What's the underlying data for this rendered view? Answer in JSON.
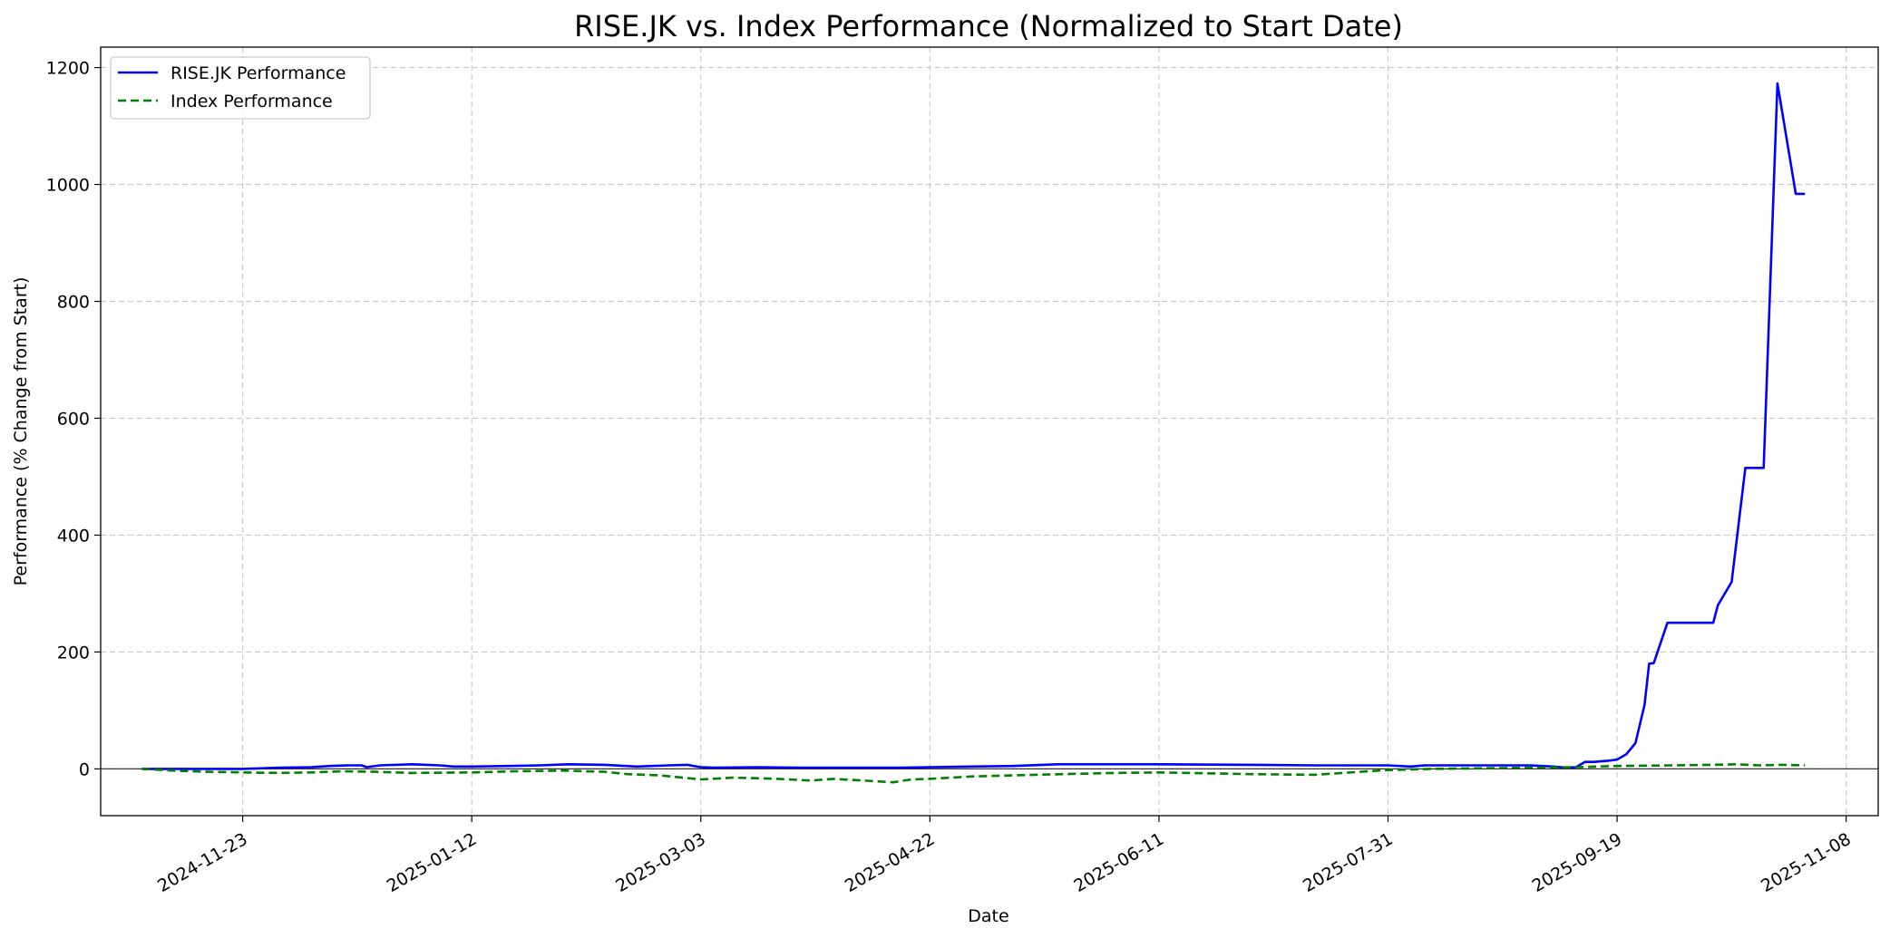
{
  "chart_data": {
    "type": "line",
    "title": "RISE.JK vs. Index Performance (Normalized to Start Date)",
    "xlabel": "Date",
    "ylabel": "Performance (% Change from Start)",
    "x_ticks": [
      "2024-11-23",
      "2025-01-12",
      "2025-03-03",
      "2025-04-22",
      "2025-06-11",
      "2025-07-31",
      "2025-09-19",
      "2025-11-08"
    ],
    "y_ticks": [
      0,
      200,
      400,
      600,
      800,
      1000,
      1200
    ],
    "xlim": [
      "2024-10-23",
      "2025-11-15"
    ],
    "ylim": [
      -80,
      1235
    ],
    "grid": true,
    "grid_style": "dashed",
    "zero_line": true,
    "legend_position": "top-left",
    "series": [
      {
        "name": "RISE.JK Performance",
        "color": "#0000ff",
        "style": "solid",
        "points": [
          [
            "2024-11-01",
            0
          ],
          [
            "2024-11-10",
            0
          ],
          [
            "2024-11-23",
            0
          ],
          [
            "2024-12-01",
            2
          ],
          [
            "2024-12-08",
            3
          ],
          [
            "2024-12-12",
            5
          ],
          [
            "2024-12-16",
            6
          ],
          [
            "2024-12-19",
            6
          ],
          [
            "2024-12-20",
            3
          ],
          [
            "2024-12-23",
            6
          ],
          [
            "2024-12-30",
            8
          ],
          [
            "2025-01-05",
            6
          ],
          [
            "2025-01-08",
            4
          ],
          [
            "2025-01-12",
            4
          ],
          [
            "2025-01-20",
            5
          ],
          [
            "2025-01-27",
            6
          ],
          [
            "2025-02-02",
            8
          ],
          [
            "2025-02-10",
            7
          ],
          [
            "2025-02-17",
            4
          ],
          [
            "2025-02-24",
            6
          ],
          [
            "2025-02-28",
            7
          ],
          [
            "2025-03-03",
            3
          ],
          [
            "2025-03-06",
            2
          ],
          [
            "2025-03-15",
            3
          ],
          [
            "2025-03-25",
            2
          ],
          [
            "2025-04-05",
            2
          ],
          [
            "2025-04-15",
            2
          ],
          [
            "2025-04-22",
            3
          ],
          [
            "2025-05-01",
            4
          ],
          [
            "2025-05-10",
            5
          ],
          [
            "2025-05-20",
            8
          ],
          [
            "2025-06-11",
            8
          ],
          [
            "2025-07-01",
            7
          ],
          [
            "2025-07-15",
            6
          ],
          [
            "2025-07-31",
            6
          ],
          [
            "2025-08-05",
            4
          ],
          [
            "2025-08-08",
            6
          ],
          [
            "2025-08-20",
            6
          ],
          [
            "2025-08-31",
            6
          ],
          [
            "2025-09-05",
            4
          ],
          [
            "2025-09-08",
            2
          ],
          [
            "2025-09-10",
            3
          ],
          [
            "2025-09-12",
            12
          ],
          [
            "2025-09-14",
            12
          ],
          [
            "2025-09-17",
            14
          ],
          [
            "2025-09-19",
            16
          ],
          [
            "2025-09-21",
            25
          ],
          [
            "2025-09-23",
            44
          ],
          [
            "2025-09-25",
            110
          ],
          [
            "2025-09-26",
            180
          ],
          [
            "2025-09-27",
            181
          ],
          [
            "2025-09-30",
            250
          ],
          [
            "2025-10-02",
            250
          ],
          [
            "2025-10-10",
            250
          ],
          [
            "2025-10-11",
            280
          ],
          [
            "2025-10-14",
            320
          ],
          [
            "2025-10-17",
            515
          ],
          [
            "2025-10-21",
            515
          ],
          [
            "2025-10-24",
            1173
          ],
          [
            "2025-10-28",
            984
          ],
          [
            "2025-10-30",
            984
          ]
        ]
      },
      {
        "name": "Index Performance",
        "color": "#008000",
        "style": "dashed",
        "points": [
          [
            "2024-11-01",
            0
          ],
          [
            "2024-11-08",
            -3
          ],
          [
            "2024-11-15",
            -5
          ],
          [
            "2024-11-23",
            -6
          ],
          [
            "2024-12-01",
            -7
          ],
          [
            "2024-12-08",
            -6
          ],
          [
            "2024-12-15",
            -4
          ],
          [
            "2024-12-22",
            -5
          ],
          [
            "2024-12-30",
            -7
          ],
          [
            "2025-01-12",
            -6
          ],
          [
            "2025-01-22",
            -4
          ],
          [
            "2025-02-01",
            -3
          ],
          [
            "2025-02-10",
            -5
          ],
          [
            "2025-02-15",
            -9
          ],
          [
            "2025-02-22",
            -11
          ],
          [
            "2025-03-03",
            -18
          ],
          [
            "2025-03-10",
            -15
          ],
          [
            "2025-03-20",
            -17
          ],
          [
            "2025-03-27",
            -20
          ],
          [
            "2025-04-01",
            -17
          ],
          [
            "2025-04-10",
            -21
          ],
          [
            "2025-04-14",
            -23
          ],
          [
            "2025-04-18",
            -18
          ],
          [
            "2025-04-22",
            -17
          ],
          [
            "2025-05-01",
            -13
          ],
          [
            "2025-05-15",
            -10
          ],
          [
            "2025-06-01",
            -7
          ],
          [
            "2025-06-11",
            -6
          ],
          [
            "2025-06-25",
            -8
          ],
          [
            "2025-07-01",
            -9
          ],
          [
            "2025-07-15",
            -10
          ],
          [
            "2025-07-25",
            -5
          ],
          [
            "2025-07-31",
            -2
          ],
          [
            "2025-08-10",
            0
          ],
          [
            "2025-08-20",
            1
          ],
          [
            "2025-08-31",
            2
          ],
          [
            "2025-09-10",
            3
          ],
          [
            "2025-09-19",
            5
          ],
          [
            "2025-10-01",
            6
          ],
          [
            "2025-10-10",
            7
          ],
          [
            "2025-10-15",
            8
          ],
          [
            "2025-10-20",
            6
          ],
          [
            "2025-10-25",
            7
          ],
          [
            "2025-10-30",
            6
          ]
        ]
      }
    ]
  }
}
